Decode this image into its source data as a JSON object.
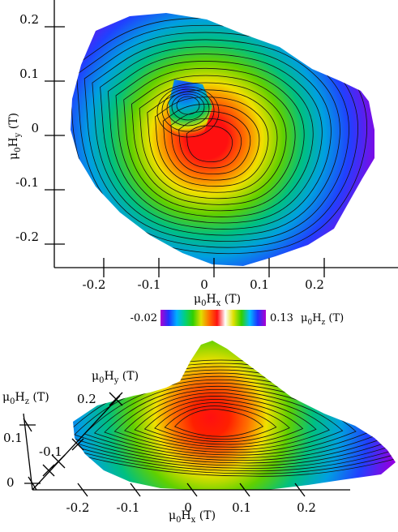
{
  "chart_data": [
    {
      "type": "heatmap",
      "view": "top",
      "x_title": {
        "mu": "μ",
        "sub0": "0",
        "H": "H",
        "sub": "x",
        "unit": " (T)"
      },
      "y_title": {
        "mu": "μ",
        "sub0": "0",
        "H": "H",
        "sub": "y",
        "unit": " (T)"
      },
      "x_ticks": [
        "-0.2",
        "-0.1",
        "0",
        "0.1",
        "0.2"
      ],
      "x_tick_values": [
        -0.2,
        -0.1,
        0,
        0.1,
        0.2
      ],
      "y_ticks": [
        "0.2",
        "0.1",
        "0",
        "-0.1",
        "-0.2"
      ],
      "y_tick_values": [
        0.2,
        0.1,
        0,
        -0.1,
        -0.2
      ],
      "xlim": [
        -0.28,
        0.28
      ],
      "ylim": [
        -0.24,
        0.24
      ],
      "contours": true,
      "colorbar": {
        "min_label": "-0.02",
        "max_label": "0.13",
        "range": [
          -0.02,
          0.13
        ],
        "title": {
          "mu": "μ",
          "sub0": "0",
          "H": "H",
          "sub": "z",
          "unit": " (T)"
        },
        "colors": [
          "#b000d0",
          "#2030ff",
          "#00b0ff",
          "#00d080",
          "#30d000",
          "#e0e000",
          "#ff7000",
          "#ff1010",
          "#ffffff",
          "#e0e000",
          "#30d000",
          "#00c0ff",
          "#2030ff",
          "#b000d0"
        ]
      }
    },
    {
      "type": "heatmap",
      "view": "perspective",
      "x_title": {
        "mu": "μ",
        "sub0": "0",
        "H": "H",
        "sub": "x",
        "unit": " (T)"
      },
      "y_title": {
        "mu": "μ",
        "sub0": "0",
        "H": "H",
        "sub": "y",
        "unit": " (T)"
      },
      "z_title": {
        "mu": "μ",
        "sub0": "0",
        "H": "H",
        "sub": "z",
        "unit": " (T)"
      },
      "x_ticks": [
        "-0.2",
        "-0.1",
        "0",
        "0.1",
        "0.2"
      ],
      "y_ticks": [
        "0.2",
        "-0.1"
      ],
      "z_ticks": [
        "0.1",
        "0"
      ],
      "contours": true
    }
  ]
}
